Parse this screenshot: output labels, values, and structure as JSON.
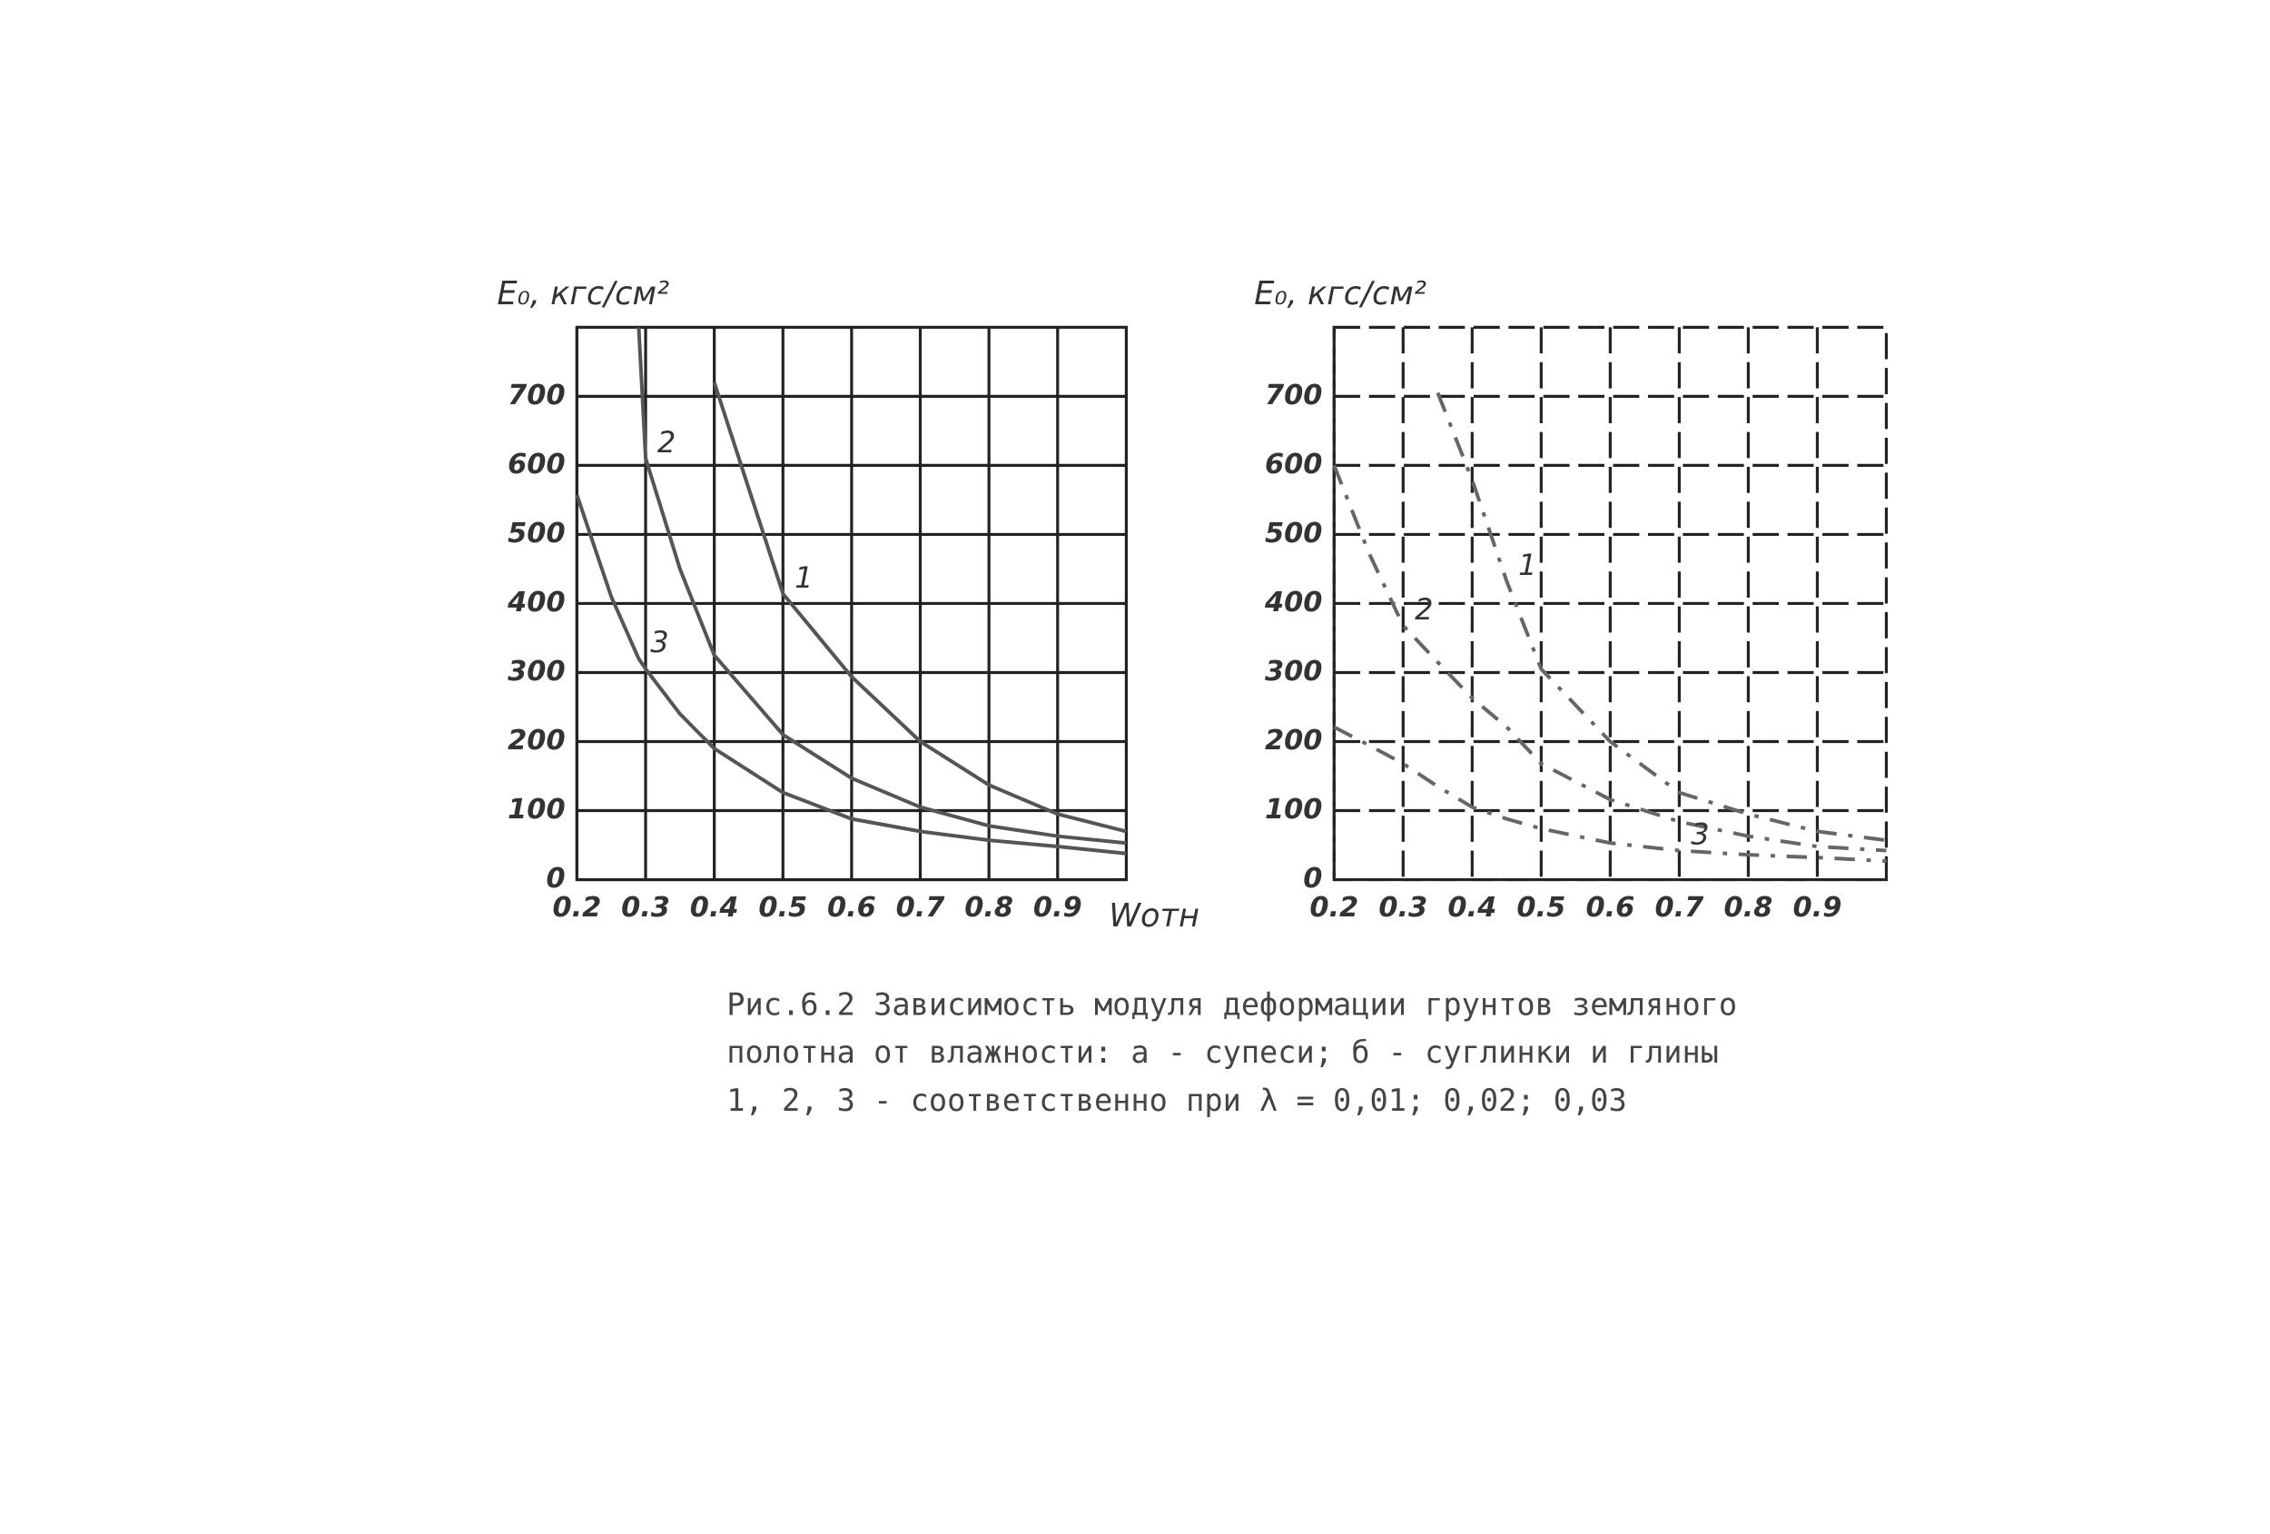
{
  "chart_data": [
    {
      "type": "line",
      "title": "E₀, кгс/см²",
      "x_label": "Wотн",
      "grid": true,
      "x": [
        0.2,
        0.25,
        0.29,
        0.3,
        0.35,
        0.4,
        0.5,
        0.6,
        0.7,
        0.8,
        0.9,
        1.0
      ],
      "xlim": [
        0.2,
        1.0
      ],
      "xticks": [
        {
          "value": 0.2,
          "label": "0.2"
        },
        {
          "value": 0.3,
          "label": "0.3"
        },
        {
          "value": 0.4,
          "label": "0.4"
        },
        {
          "value": 0.5,
          "label": "0.5"
        },
        {
          "value": 0.6,
          "label": "0.6"
        },
        {
          "value": 0.7,
          "label": "0.7"
        },
        {
          "value": 0.8,
          "label": "0.8"
        },
        {
          "value": 0.9,
          "label": "0.9"
        }
      ],
      "ylim": [
        0,
        800
      ],
      "yticks": [
        0,
        100,
        200,
        300,
        400,
        500,
        600,
        700
      ],
      "series": [
        {
          "name": "1",
          "color": "#555555",
          "dash": false,
          "values": [
            null,
            null,
            null,
            null,
            null,
            720,
            414,
            294,
            200,
            137,
            95,
            70
          ]
        },
        {
          "name": "2",
          "color": "#555555",
          "dash": false,
          "values": [
            null,
            null,
            800,
            610,
            450,
            325,
            210,
            147,
            105,
            78,
            63,
            53
          ]
        },
        {
          "name": "3",
          "color": "#555555",
          "dash": false,
          "values": [
            557,
            410,
            320,
            305,
            240,
            190,
            126,
            88,
            70,
            57,
            48,
            38
          ]
        }
      ]
    },
    {
      "type": "line",
      "title": "E₀, кгс/см²",
      "grid": true,
      "x": [
        0.2,
        0.25,
        0.3,
        0.35,
        0.4,
        0.45,
        0.5,
        0.6,
        0.7,
        0.8,
        0.9,
        1.0
      ],
      "xlim": [
        0.2,
        1.0
      ],
      "xticks": [
        {
          "value": 0.2,
          "label": "0.2"
        },
        {
          "value": 0.3,
          "label": "0.3"
        },
        {
          "value": 0.4,
          "label": "0.4"
        },
        {
          "value": 0.5,
          "label": "0.5"
        },
        {
          "value": 0.6,
          "label": "0.6"
        },
        {
          "value": 0.7,
          "label": "0.7"
        },
        {
          "value": 0.8,
          "label": "0.8"
        },
        {
          "value": 0.9,
          "label": "0.9"
        }
      ],
      "ylim": [
        0,
        800
      ],
      "yticks": [
        0,
        100,
        200,
        300,
        400,
        500,
        600,
        700
      ],
      "series": [
        {
          "name": "1",
          "color": "#666666",
          "dash": true,
          "values": [
            null,
            null,
            null,
            705,
            579,
            432,
            305,
            200,
            126,
            95,
            70,
            57
          ]
        },
        {
          "name": "2",
          "color": "#666666",
          "dash": true,
          "values": [
            600,
            474,
            368,
            315,
            263,
            221,
            168,
            116,
            84,
            63,
            48,
            42
          ]
        },
        {
          "name": "3",
          "color": "#666666",
          "dash": true,
          "values": [
            221,
            195,
            168,
            135,
            105,
            88,
            74,
            53,
            42,
            36,
            32,
            27
          ]
        }
      ]
    }
  ],
  "caption": [
    "Рис.6.2  Зависимость модуля деформации грунтов земляного",
    "полотна от влажности: а - супеси; б - суглинки и глины",
    "1, 2, 3 - соответственно при λ = 0,01; 0,02; 0,03"
  ]
}
